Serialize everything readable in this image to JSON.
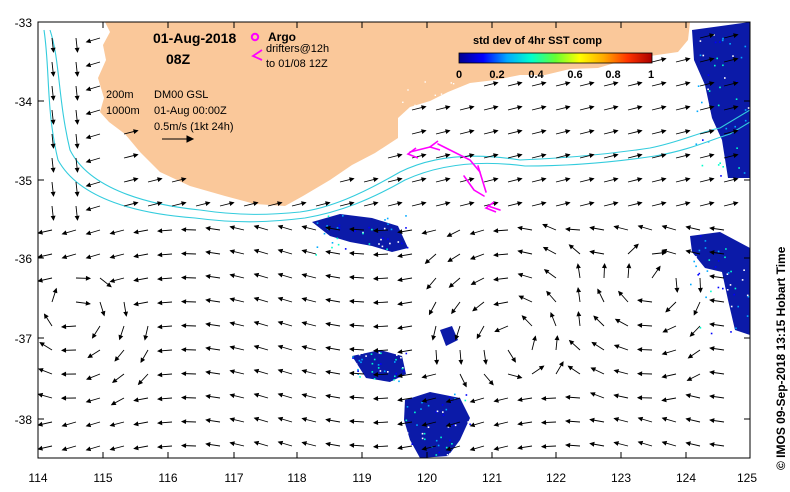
{
  "map": {
    "title_date": "01-Aug-2018",
    "title_time": "08Z",
    "lon_ticks": [
      "114",
      "115",
      "116",
      "117",
      "118",
      "119",
      "120",
      "121",
      "122",
      "123",
      "124",
      "125"
    ],
    "lat_ticks": [
      "-33",
      "-34",
      "-35",
      "-36",
      "-37",
      "-38"
    ],
    "legend": {
      "argo_label": "Argo",
      "drifters_label_1": "drifters@12h",
      "drifters_label_2": "to 01/08 12Z",
      "depth_200": "200m",
      "depth_1000": "1000m",
      "dataset": "DM00 GSL",
      "data_time": "01-Aug 00:00Z",
      "velocity_scale": "0.5m/s (1kt 24h)",
      "argo_color": "#ff00ff",
      "drifter_color": "#ff00ff",
      "isobath_color": "#33ccdd"
    },
    "colorbar": {
      "title": "std dev of 4hr SST comp",
      "ticks": [
        "0",
        "0.2",
        "0.4",
        "0.6",
        "0.8",
        "1"
      ],
      "colors": [
        "#00008f",
        "#0000ff",
        "#00aaff",
        "#00ffcc",
        "#66ff33",
        "#ffff00",
        "#ffaa00",
        "#ff3300",
        "#aa0000"
      ]
    },
    "land_color": "#fac89a",
    "credit": "© IMOS 09-Sep-2018 13:15 Hobart Time"
  }
}
